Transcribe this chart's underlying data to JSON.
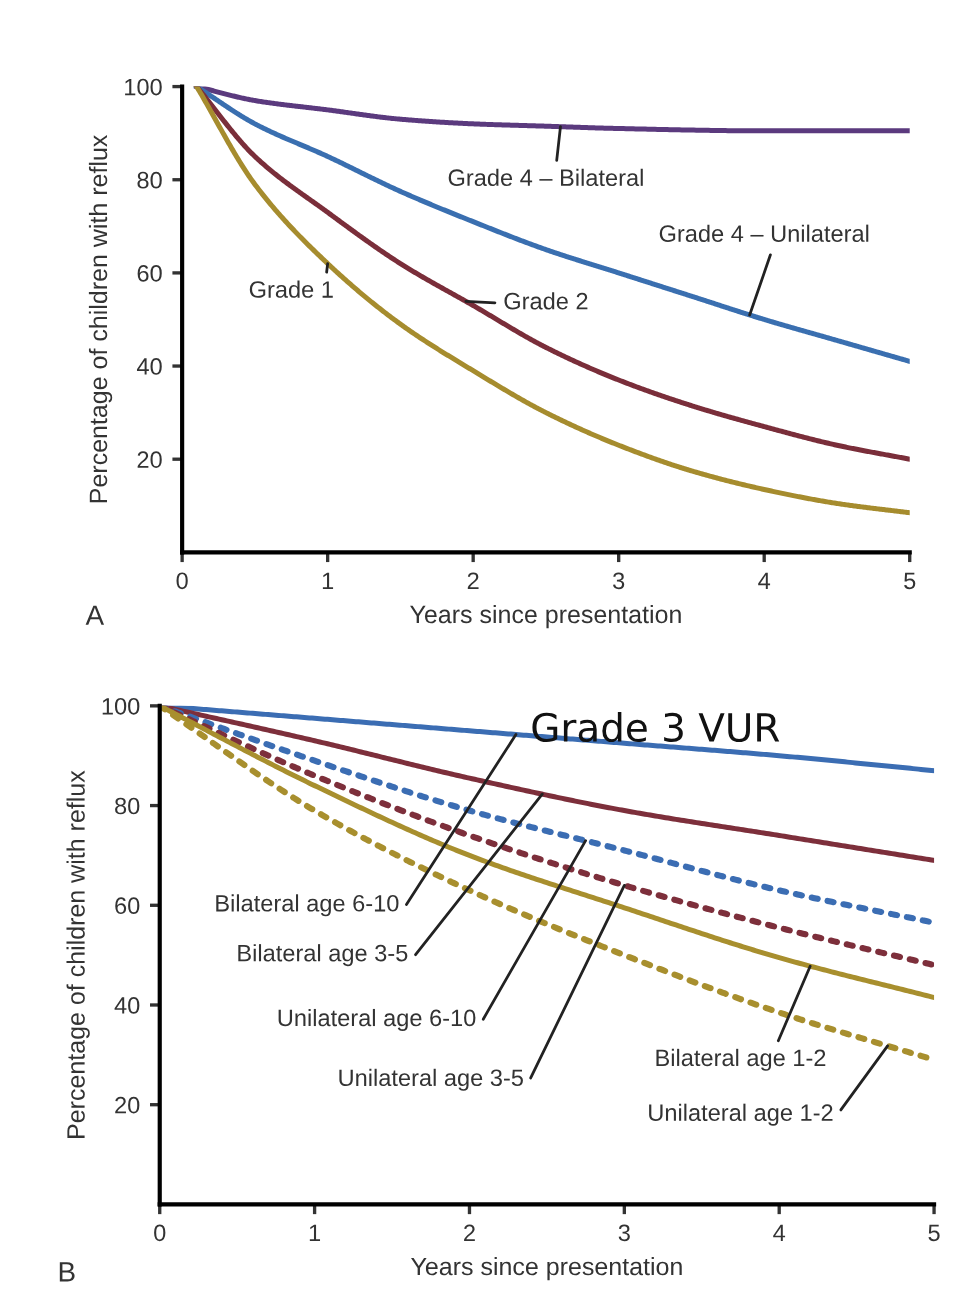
{
  "chart_data": [
    {
      "type": "line",
      "xlabel": "Years since presentation",
      "ylabel": "Percentage of children with reflux",
      "xlim": [
        0,
        5
      ],
      "ylim": [
        0,
        100
      ],
      "xticks": [
        0,
        1,
        2,
        3,
        4,
        5
      ],
      "yticks": [
        20,
        40,
        60,
        80,
        100
      ],
      "grid": false,
      "marker": "none",
      "series": [
        {
          "name": "Grade 4 – Bilateral",
          "color": "#5b3a7e",
          "line_style": "solid",
          "x": [
            0.1,
            0.5,
            1,
            1.5,
            2,
            2.5,
            3,
            4,
            5
          ],
          "values": [
            100,
            97,
            95,
            93,
            92,
            91.5,
            91,
            90.5,
            90.5
          ]
        },
        {
          "name": "Grade 4 – Unilateral",
          "color": "#3a6fb0",
          "line_style": "solid",
          "x": [
            0.1,
            0.5,
            1,
            1.5,
            2,
            2.5,
            3,
            3.5,
            4,
            4.5,
            5
          ],
          "values": [
            100,
            92,
            85,
            77.5,
            71,
            65,
            60,
            55,
            50,
            45.5,
            41
          ]
        },
        {
          "name": "Grade 2",
          "color": "#7a2e3a",
          "line_style": "solid",
          "x": [
            0.1,
            0.5,
            1,
            1.5,
            2,
            2.5,
            3,
            3.5,
            4,
            4.5,
            5
          ],
          "values": [
            100,
            85,
            73,
            62,
            53,
            44,
            37,
            31.5,
            27,
            23,
            20
          ]
        },
        {
          "name": "Grade 1",
          "color": "#a68c2e",
          "line_style": "solid",
          "x": [
            0.1,
            0.5,
            1,
            1.5,
            2,
            2.5,
            3,
            3.5,
            4,
            4.5,
            5
          ],
          "values": [
            100,
            79,
            62,
            49,
            39,
            30,
            23,
            17.5,
            13.5,
            10.5,
            8.5
          ]
        }
      ],
      "annotations": [
        "A"
      ]
    },
    {
      "type": "line",
      "xlabel": "Years since presentation",
      "ylabel": "Percentage of children with reflux",
      "xlim": [
        0,
        5
      ],
      "ylim": [
        0,
        100
      ],
      "xticks": [
        0,
        1,
        2,
        3,
        4,
        5
      ],
      "yticks": [
        20,
        40,
        60,
        80,
        100
      ],
      "grid": false,
      "marker": "none",
      "series": [
        {
          "name": "Bilateral age 6-10",
          "color": "#3b6db3",
          "line_style": "solid",
          "x": [
            0,
            1,
            2,
            3,
            4,
            5
          ],
          "values": [
            100,
            97.5,
            95,
            92.5,
            90,
            87
          ]
        },
        {
          "name": "Bilateral age 3-5",
          "color": "#7d2f3b",
          "line_style": "solid",
          "x": [
            0,
            1,
            2,
            3,
            4,
            5
          ],
          "values": [
            100,
            93,
            85.5,
            79,
            74,
            69
          ]
        },
        {
          "name": "Unilateral age 6-10",
          "color": "#3b6db3",
          "line_style": "dotted",
          "x": [
            0,
            1,
            2,
            3,
            4,
            5
          ],
          "values": [
            100,
            89,
            79,
            71,
            63,
            56.5
          ]
        },
        {
          "name": "Unilateral age 3-5",
          "color": "#7d2f3b",
          "line_style": "dotted",
          "x": [
            0,
            1,
            2,
            3,
            4,
            5
          ],
          "values": [
            100,
            86,
            74,
            64,
            55.5,
            48
          ]
        },
        {
          "name": "Bilateral age 1-2",
          "color": "#a88f2e",
          "line_style": "solid",
          "x": [
            0,
            1,
            2,
            3,
            4,
            5
          ],
          "values": [
            100,
            84,
            70,
            59.5,
            49.5,
            41.5
          ]
        },
        {
          "name": "Unilateral age 1-2",
          "color": "#a88f2e",
          "line_style": "dotted",
          "x": [
            0,
            1,
            2,
            3,
            4,
            5
          ],
          "values": [
            100,
            79,
            63,
            50,
            38.5,
            29
          ]
        }
      ],
      "annotations": [
        "Grade 3 VUR",
        "B"
      ]
    }
  ]
}
